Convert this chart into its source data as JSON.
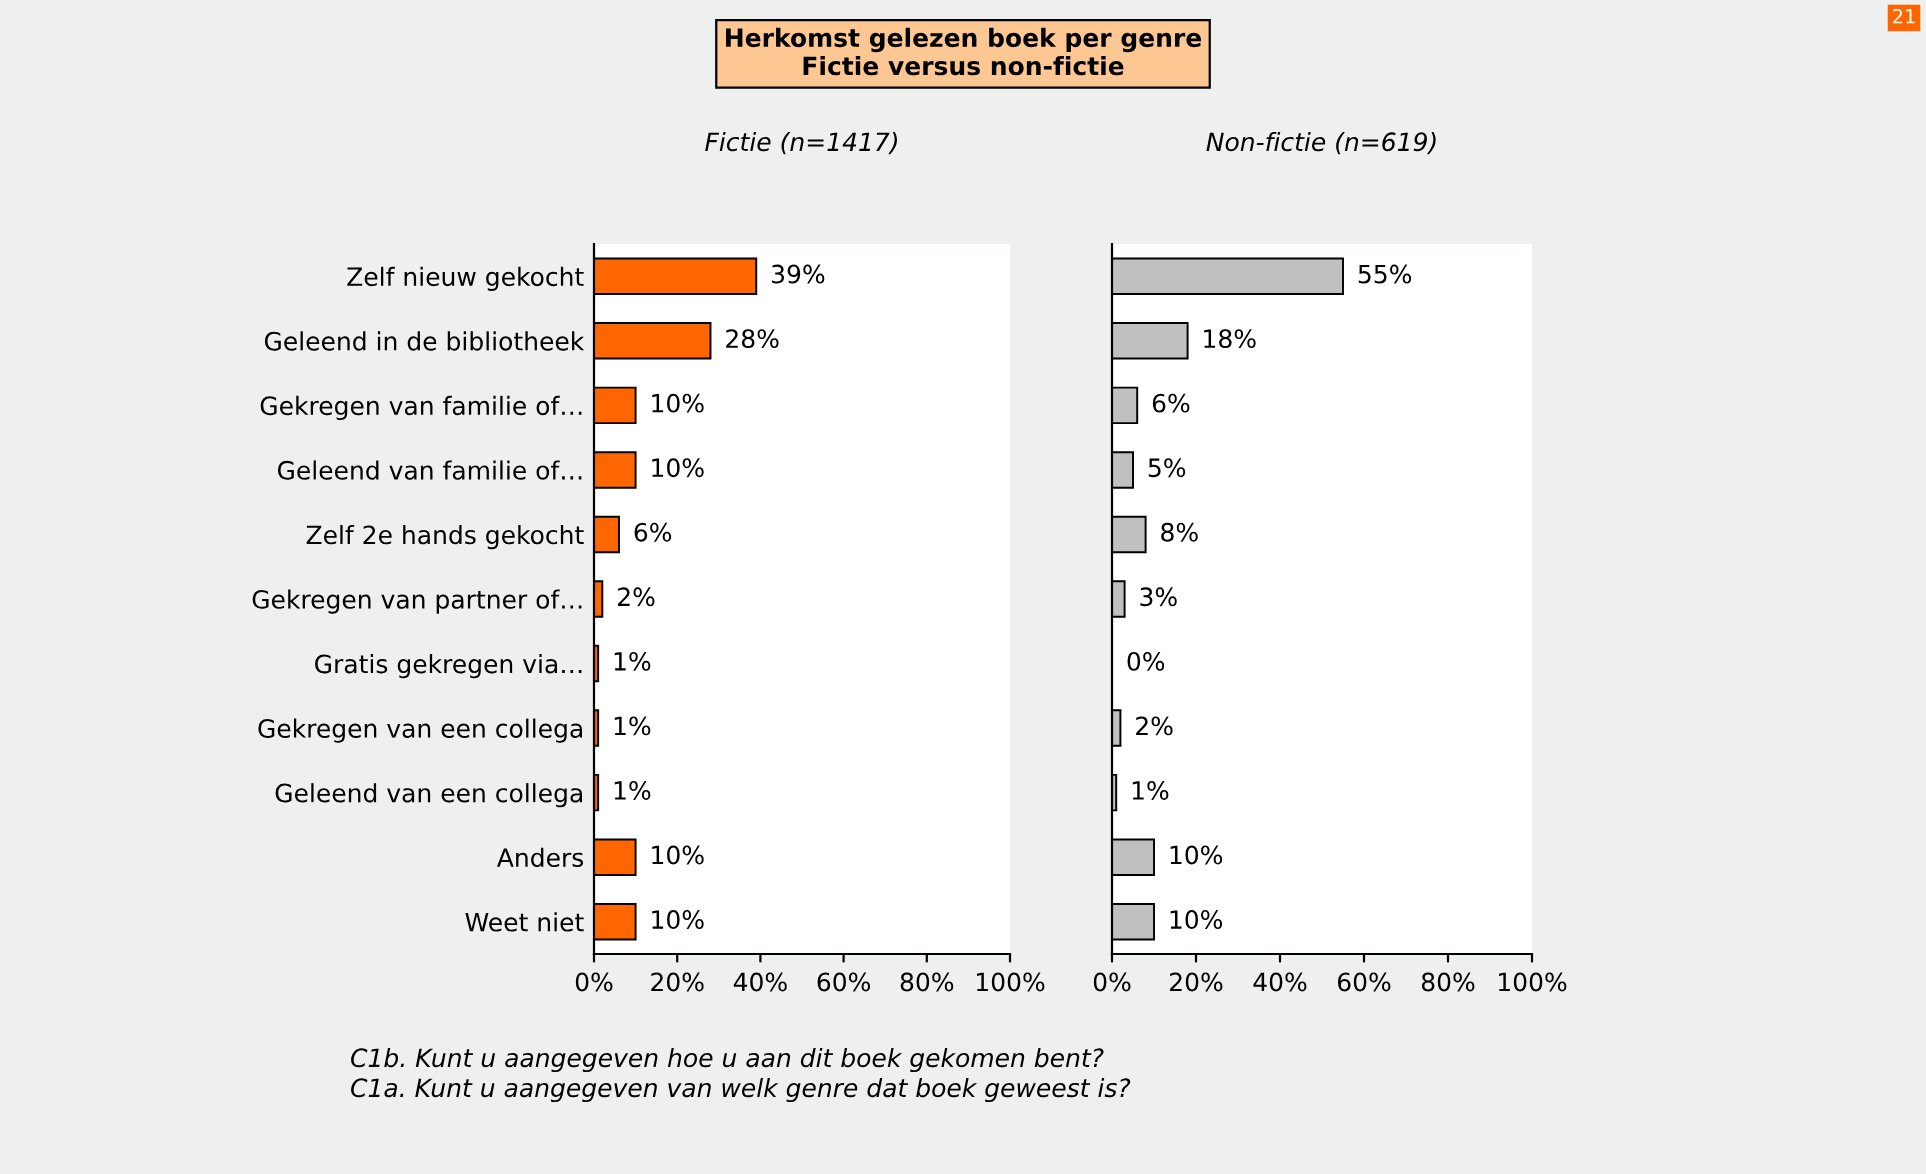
{
  "chart_data": [
    {
      "type": "bar",
      "orientation": "horizontal",
      "title": "Herkomst gelezen boek per genre\nFictie versus non-fictie",
      "subtitle": "Fictie (n=1417)",
      "categories": [
        "Zelf nieuw gekocht",
        "Geleend in de bibliotheek",
        "Gekregen van familie of…",
        "Geleend van familie of…",
        "Zelf 2e hands gekocht",
        "Gekregen van partner of…",
        "Gratis gekregen via…",
        "Gekregen van een collega",
        "Geleend van een collega",
        "Anders",
        "Weet niet"
      ],
      "values": [
        39,
        28,
        10,
        10,
        6,
        2,
        1,
        1,
        1,
        10,
        10
      ],
      "value_labels": [
        "39%",
        "28%",
        "10%",
        "10%",
        "6%",
        "2%",
        "1%",
        "1%",
        "1%",
        "10%",
        "10%"
      ],
      "color": "#ff6600",
      "xlim": [
        0,
        100
      ],
      "xticks": [
        {
          "value": 0,
          "label": "0%"
        },
        {
          "value": 20,
          "label": "20%"
        },
        {
          "value": 40,
          "label": "40%"
        },
        {
          "value": 60,
          "label": "60%"
        },
        {
          "value": 80,
          "label": "80%"
        },
        {
          "value": 100,
          "label": "100%"
        }
      ],
      "grid": false,
      "annotations": [
        "21",
        "C1b. Kunt u aangegeven hoe u aan dit boek gekomen bent?",
        "C1a. Kunt u aangegeven van welk genre dat boek geweest is?"
      ]
    },
    {
      "type": "bar",
      "orientation": "horizontal",
      "subtitle": "Non-fictie (n=619)",
      "values": [
        55,
        18,
        6,
        5,
        8,
        3,
        0,
        2,
        1,
        10,
        10
      ],
      "value_labels": [
        "55%",
        "18%",
        "6%",
        "5%",
        "8%",
        "3%",
        "0%",
        "2%",
        "1%",
        "10%",
        "10%"
      ],
      "color": "#c0c0c0",
      "xlim": [
        0,
        100
      ],
      "xticks": [
        {
          "value": 0,
          "label": "0%"
        },
        {
          "value": 20,
          "label": "20%"
        },
        {
          "value": 40,
          "label": "40%"
        },
        {
          "value": 60,
          "label": "60%"
        },
        {
          "value": 80,
          "label": "80%"
        },
        {
          "value": 100,
          "label": "100%"
        }
      ],
      "grid": false,
      "tick_labels": "x"
    }
  ]
}
